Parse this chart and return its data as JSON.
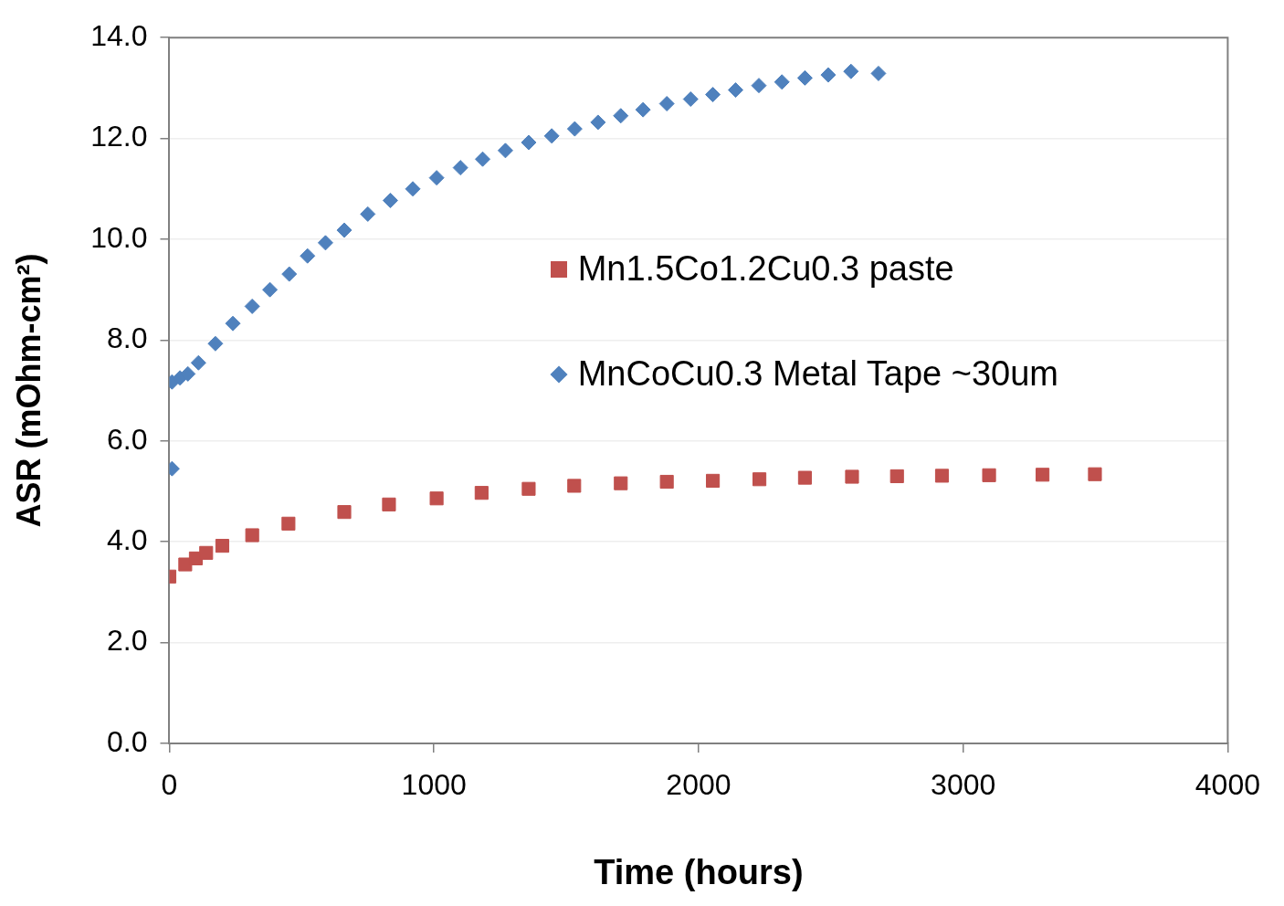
{
  "chart_data": {
    "type": "scatter",
    "xlabel": "Time (hours)",
    "ylabel": "ASR (mOhm-cm²)",
    "xlim": [
      0,
      4000
    ],
    "xticks": [
      0,
      1000,
      2000,
      3000,
      4000
    ],
    "ylim": [
      0,
      14
    ],
    "yticks": [
      {
        "value": 0,
        "label": "0.0"
      },
      {
        "value": 2,
        "label": "2.0"
      },
      {
        "value": 4,
        "label": "4.0"
      },
      {
        "value": 6,
        "label": "6.0"
      },
      {
        "value": 8,
        "label": "8.0"
      },
      {
        "value": 10,
        "label": "10.0"
      },
      {
        "value": 12,
        "label": "12.0"
      },
      {
        "value": 14,
        "label": "14.0"
      }
    ],
    "grid": "y",
    "legend": "right",
    "series": [
      {
        "name": "Mn1.5Co1.2Cu0.3 paste",
        "color": "#c0504d",
        "marker": "square",
        "x": [
          0,
          60,
          100,
          139,
          200,
          313,
          450,
          661,
          830,
          1010,
          1180,
          1358,
          1530,
          1706,
          1880,
          2054,
          2230,
          2402,
          2580,
          2750,
          2920,
          3098,
          3300,
          3498
        ],
        "values": [
          3.31,
          3.55,
          3.67,
          3.78,
          3.92,
          4.13,
          4.36,
          4.59,
          4.74,
          4.86,
          4.97,
          5.05,
          5.11,
          5.16,
          5.19,
          5.21,
          5.24,
          5.27,
          5.29,
          5.3,
          5.31,
          5.32,
          5.33,
          5.34
        ]
      },
      {
        "name": "MnCoCu0.3 Metal Tape ~30um",
        "color": "#4f81bd",
        "marker": "diamond",
        "x": [
          10,
          10,
          40,
          70,
          110,
          174,
          240,
          313,
          380,
          453,
          522,
          590,
          661,
          750,
          835,
          920,
          1010,
          1100,
          1184,
          1270,
          1358,
          1445,
          1532,
          1620,
          1706,
          1790,
          1880,
          1970,
          2054,
          2140,
          2228,
          2315,
          2402,
          2490,
          2576,
          2680
        ],
        "values": [
          5.45,
          7.17,
          7.25,
          7.33,
          7.55,
          7.93,
          8.33,
          8.67,
          9.0,
          9.31,
          9.67,
          9.93,
          10.18,
          10.5,
          10.77,
          11.0,
          11.22,
          11.42,
          11.59,
          11.76,
          11.92,
          12.05,
          12.19,
          12.32,
          12.45,
          12.57,
          12.69,
          12.78,
          12.87,
          12.96,
          13.05,
          13.12,
          13.2,
          13.26,
          13.33,
          13.29
        ]
      }
    ]
  }
}
